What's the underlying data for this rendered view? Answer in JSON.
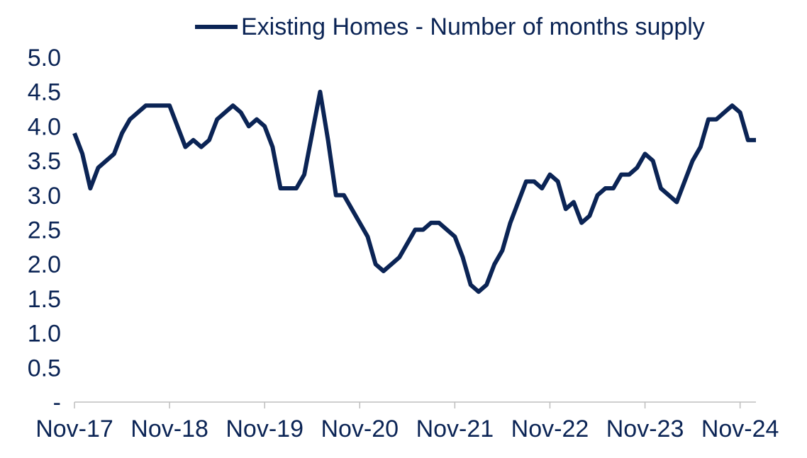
{
  "chart_data": {
    "type": "line",
    "title": "",
    "xlabel": "",
    "ylabel": "",
    "ylim": [
      0,
      5
    ],
    "y_ticks": [
      "-",
      "0.5",
      "1.0",
      "1.5",
      "2.0",
      "2.5",
      "3.0",
      "3.5",
      "4.0",
      "4.5",
      "5.0"
    ],
    "x_tick_labels": [
      "Nov-17",
      "Nov-18",
      "Nov-19",
      "Nov-20",
      "Nov-21",
      "Nov-22",
      "Nov-23",
      "Nov-24"
    ],
    "grid": false,
    "legend_position": "top",
    "line_color": "#0b2455",
    "series": [
      {
        "name": "Existing Homes - Number of months supply",
        "values": [
          3.9,
          3.6,
          3.1,
          3.4,
          3.5,
          3.6,
          3.9,
          4.1,
          4.2,
          4.3,
          4.3,
          4.3,
          4.3,
          4.0,
          3.7,
          3.8,
          3.7,
          3.8,
          4.1,
          4.2,
          4.3,
          4.2,
          4.0,
          4.1,
          4.0,
          3.7,
          3.1,
          3.1,
          3.1,
          3.3,
          3.9,
          4.5,
          3.8,
          3.0,
          3.0,
          2.8,
          2.6,
          2.4,
          2.0,
          1.9,
          2.0,
          2.1,
          2.3,
          2.5,
          2.5,
          2.6,
          2.6,
          2.5,
          2.4,
          2.1,
          1.7,
          1.6,
          1.7,
          2.0,
          2.2,
          2.6,
          2.9,
          3.2,
          3.2,
          3.1,
          3.3,
          3.2,
          2.8,
          2.9,
          2.6,
          2.7,
          3.0,
          3.1,
          3.1,
          3.3,
          3.3,
          3.4,
          3.6,
          3.5,
          3.1,
          3.0,
          2.9,
          3.2,
          3.5,
          3.7,
          4.1,
          4.1,
          4.2,
          4.3,
          4.2,
          3.8,
          3.8
        ]
      }
    ]
  }
}
